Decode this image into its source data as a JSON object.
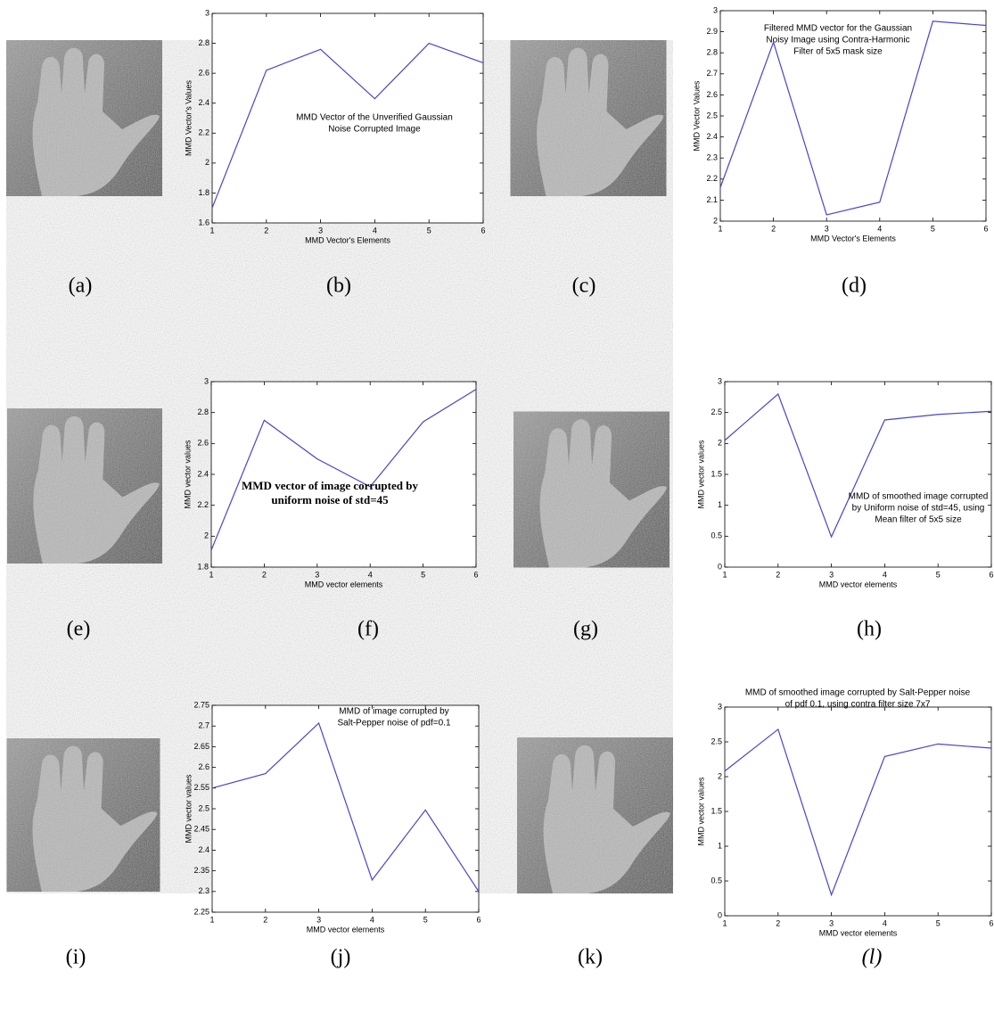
{
  "chart_data": [
    {
      "type": "line",
      "color": "#4646c8",
      "x": [
        1,
        2,
        3,
        4,
        5,
        6
      ],
      "values": [
        1.7,
        2.62,
        2.76,
        2.43,
        2.8,
        2.67
      ],
      "xlim": [
        1,
        6
      ],
      "xticks": [
        1,
        2,
        3,
        4,
        5,
        6
      ],
      "ylim": [
        1.6,
        3
      ],
      "yticks": [
        1.6,
        1.8,
        2,
        2.2,
        2.4,
        2.6,
        2.8,
        3
      ],
      "x_label": "MMD Vector's Elements",
      "y_label": "MMD Vector's Values",
      "annotation": [
        "MMD Vector of the Unverified Gaussian",
        "Noise Corrupted Image"
      ]
    },
    {
      "type": "line",
      "color": "#4646c8",
      "x": [
        1,
        2,
        3,
        4,
        5,
        6
      ],
      "values": [
        2.16,
        2.85,
        2.03,
        2.09,
        2.95,
        2.93
      ],
      "xlim": [
        1,
        6
      ],
      "xticks": [
        1,
        2,
        3,
        4,
        5,
        6
      ],
      "ylim": [
        2,
        3
      ],
      "yticks": [
        2,
        2.1,
        2.2,
        2.3,
        2.4,
        2.5,
        2.6,
        2.7,
        2.8,
        2.9,
        3
      ],
      "x_label": "MMD Vector's Elements",
      "y_label": "MMD Vector Values",
      "annotation": [
        "Filtered MMD vector for the Gaussian",
        "Noisy Image using Contra-Harmonic",
        "Filter of 5x5 mask size"
      ]
    },
    {
      "type": "line",
      "color": "#4646c8",
      "x": [
        1,
        2,
        3,
        4,
        5,
        6
      ],
      "values": [
        1.91,
        2.75,
        2.5,
        2.32,
        2.74,
        2.95
      ],
      "xlim": [
        1,
        6
      ],
      "xticks": [
        1,
        2,
        3,
        4,
        5,
        6
      ],
      "ylim": [
        1.8,
        3
      ],
      "yticks": [
        1.8,
        2,
        2.2,
        2.4,
        2.6,
        2.8,
        3
      ],
      "x_label": "MMD vector elements",
      "y_label": "MMD vector values",
      "annotation": [
        "MMD vector of image corrupted by",
        "uniform noise of std=45"
      ]
    },
    {
      "type": "line",
      "color": "#4646c8",
      "x": [
        1,
        2,
        3,
        4,
        5,
        6
      ],
      "values": [
        2.05,
        2.8,
        0.49,
        2.38,
        2.47,
        2.52
      ],
      "xlim": [
        1,
        6
      ],
      "xticks": [
        1,
        2,
        3,
        4,
        5,
        6
      ],
      "ylim": [
        0,
        3
      ],
      "yticks": [
        0,
        0.5,
        1,
        1.5,
        2,
        2.5,
        3
      ],
      "x_label": "MMD vector elements",
      "y_label": "MMD vector values",
      "annotation": [
        "MMD of smoothed image corrupted",
        "by Uniform noise of std=45, using",
        "Mean filter of 5x5 size"
      ]
    },
    {
      "type": "line",
      "color": "#4646c8",
      "x": [
        1,
        2,
        3,
        4,
        5,
        6
      ],
      "values": [
        2.55,
        2.585,
        2.707,
        2.328,
        2.497,
        2.3
      ],
      "xlim": [
        1,
        6
      ],
      "xticks": [
        1,
        2,
        3,
        4,
        5,
        6
      ],
      "ylim": [
        2.25,
        2.75
      ],
      "yticks": [
        2.25,
        2.3,
        2.35,
        2.4,
        2.45,
        2.5,
        2.55,
        2.6,
        2.65,
        2.7,
        2.75
      ],
      "x_label": "MMD vector elements",
      "y_label": "MMD vector values",
      "annotation": [
        "MMD of image corrupted by",
        "Salt-Pepper noise of pdf=0.1"
      ]
    },
    {
      "type": "line",
      "color": "#4646c8",
      "x": [
        1,
        2,
        3,
        4,
        5,
        6
      ],
      "values": [
        2.08,
        2.68,
        0.3,
        2.29,
        2.47,
        2.41
      ],
      "xlim": [
        1,
        6
      ],
      "xticks": [
        1,
        2,
        3,
        4,
        5,
        6
      ],
      "ylim": [
        0,
        3
      ],
      "yticks": [
        0,
        0.5,
        1,
        1.5,
        2,
        2.5,
        3
      ],
      "x_label": "MMD vector elements",
      "y_label": "MMD vector values",
      "annotation": [
        "MMD of smoothed image corrupted by Salt-Pepper noise",
        "of pdf 0.1, using contra filter size 7x7"
      ]
    }
  ],
  "captions": [
    "(a)",
    "(b)",
    "(c)",
    "(d)",
    "(e)",
    "(f)",
    "(g)",
    "(h)",
    "(i)",
    "(j)",
    "(k)",
    "(l)"
  ]
}
